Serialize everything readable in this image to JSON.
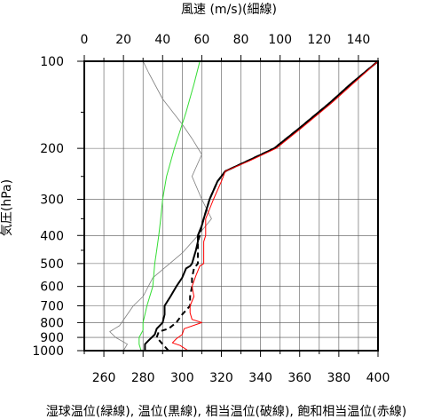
{
  "chart_data": {
    "type": "line",
    "top_axis_title": "風速 (m/s)(細線)",
    "left_axis_title": "気圧(hPa)",
    "bottom_caption": "湿球温位(緑線), 温位(黒線), 相当温位(破線), 飽和相当温位(赤線)",
    "bottom_axis": {
      "range": [
        250,
        400
      ],
      "ticks": [
        "260",
        "280",
        "300",
        "320",
        "340",
        "360",
        "380",
        "400"
      ],
      "tick_values": [
        260,
        280,
        300,
        320,
        340,
        360,
        380,
        400
      ]
    },
    "top_axis": {
      "range": [
        0,
        150
      ],
      "ticks": [
        "0",
        "20",
        "40",
        "60",
        "80",
        "100",
        "120",
        "140"
      ],
      "tick_values": [
        0,
        20,
        40,
        60,
        80,
        100,
        120,
        140
      ]
    },
    "y_axis": {
      "scale": "log",
      "range": [
        1000,
        100
      ],
      "ticks": [
        "100",
        "200",
        "300",
        "400",
        "500",
        "600",
        "700",
        "800",
        "900",
        "1000"
      ],
      "tick_values": [
        100,
        200,
        300,
        400,
        500,
        600,
        700,
        800,
        900,
        1000
      ]
    },
    "grid": true,
    "series": [
      {
        "id": "wind_speed",
        "axis": "top",
        "color": "#7f7f7f",
        "width": 0.8,
        "dash": "",
        "points": [
          [
            20,
            1000
          ],
          [
            22,
            950
          ],
          [
            16,
            900
          ],
          [
            13,
            860
          ],
          [
            18,
            820
          ],
          [
            25,
            700
          ],
          [
            30,
            650
          ],
          [
            35,
            560
          ],
          [
            50,
            460
          ],
          [
            58,
            400
          ],
          [
            65,
            350
          ],
          [
            60,
            300
          ],
          [
            55,
            250
          ],
          [
            60,
            210
          ],
          [
            55,
            185
          ],
          [
            50,
            165
          ],
          [
            40,
            135
          ],
          [
            33,
            110
          ],
          [
            30,
            100
          ]
        ]
      },
      {
        "id": "wet_bulb_potential_temperature",
        "axis": "bottom",
        "color": "#33dd33",
        "width": 1.0,
        "dash": "",
        "points": [
          [
            279,
            1000
          ],
          [
            278,
            950
          ],
          [
            278,
            900
          ],
          [
            280,
            850
          ],
          [
            280,
            800
          ],
          [
            282,
            700
          ],
          [
            285,
            600
          ],
          [
            286,
            500
          ],
          [
            287,
            450
          ],
          [
            288,
            400
          ],
          [
            289,
            350
          ],
          [
            290,
            300
          ],
          [
            292,
            250
          ],
          [
            296,
            200
          ],
          [
            302,
            150
          ],
          [
            306,
            120
          ],
          [
            309,
            100
          ]
        ]
      },
      {
        "id": "potential_temperature",
        "axis": "bottom",
        "color": "#000000",
        "width": 2.0,
        "dash": "",
        "points": [
          [
            281,
            1000
          ],
          [
            281,
            950
          ],
          [
            283,
            920
          ],
          [
            286,
            880
          ],
          [
            287,
            840
          ],
          [
            290,
            800
          ],
          [
            291,
            750
          ],
          [
            291,
            700
          ],
          [
            294,
            650
          ],
          [
            297,
            600
          ],
          [
            300,
            560
          ],
          [
            302,
            520
          ],
          [
            304,
            510
          ],
          [
            305,
            500
          ],
          [
            307,
            450
          ],
          [
            308,
            420
          ],
          [
            308,
            400
          ],
          [
            310,
            370
          ],
          [
            311,
            350
          ],
          [
            314,
            300
          ],
          [
            318,
            260
          ],
          [
            322,
            240
          ],
          [
            334,
            220
          ],
          [
            347,
            200
          ],
          [
            360,
            170
          ],
          [
            375,
            140
          ],
          [
            386,
            120
          ],
          [
            400,
            100
          ]
        ]
      },
      {
        "id": "equivalent_potential_temperature",
        "axis": "bottom",
        "color": "#000000",
        "width": 2.0,
        "dash": "6,4",
        "points": [
          [
            293,
            1000
          ],
          [
            290,
            950
          ],
          [
            287,
            900
          ],
          [
            288,
            860
          ],
          [
            293,
            840
          ],
          [
            297,
            800
          ],
          [
            300,
            750
          ],
          [
            304,
            700
          ],
          [
            304,
            650
          ],
          [
            305,
            600
          ],
          [
            305,
            560
          ],
          [
            306,
            520
          ],
          [
            308,
            500
          ],
          [
            308,
            450
          ],
          [
            308,
            420
          ],
          [
            309,
            400
          ],
          [
            310,
            370
          ],
          [
            311,
            350
          ],
          [
            314,
            300
          ],
          [
            318,
            260
          ],
          [
            322,
            240
          ],
          [
            334,
            220
          ],
          [
            347,
            200
          ],
          [
            360,
            170
          ],
          [
            375,
            140
          ],
          [
            386,
            120
          ],
          [
            400,
            100
          ]
        ]
      },
      {
        "id": "saturated_equivalent_potential_temperature",
        "axis": "bottom",
        "color": "#ff0000",
        "width": 1.0,
        "dash": "",
        "points": [
          [
            303,
            1000
          ],
          [
            299,
            960
          ],
          [
            295,
            940
          ],
          [
            297,
            910
          ],
          [
            300,
            880
          ],
          [
            301,
            840
          ],
          [
            310,
            800
          ],
          [
            305,
            780
          ],
          [
            304,
            740
          ],
          [
            304,
            700
          ],
          [
            306,
            650
          ],
          [
            305,
            600
          ],
          [
            307,
            550
          ],
          [
            309,
            510
          ],
          [
            311,
            500
          ],
          [
            311,
            460
          ],
          [
            311,
            420
          ],
          [
            312,
            400
          ],
          [
            312,
            370
          ],
          [
            312,
            350
          ],
          [
            316,
            300
          ],
          [
            320,
            260
          ],
          [
            322,
            240
          ],
          [
            335,
            220
          ],
          [
            348,
            200
          ],
          [
            361,
            170
          ],
          [
            376,
            140
          ],
          [
            387,
            120
          ],
          [
            400,
            100
          ]
        ]
      }
    ]
  }
}
